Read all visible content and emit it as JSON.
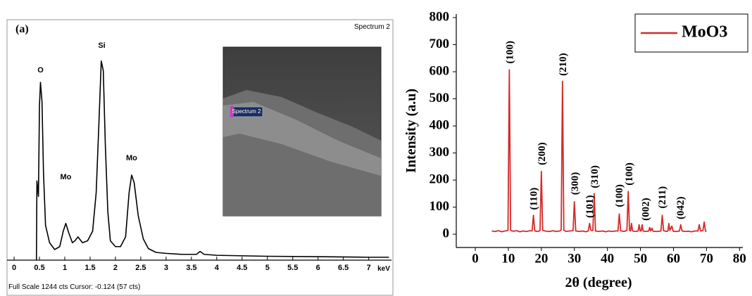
{
  "chart_data": [
    {
      "type": "line",
      "title": "(a)",
      "subtitle": "Spectrum 2",
      "footer": "Full Scale 1244 cts Cursor: -0.124 (57 cts)",
      "x_label": "keV",
      "inset_label": "Spectrum 2",
      "xlim": [
        -0.14,
        7.45
      ],
      "ylim": [
        0,
        1244
      ],
      "xticks": [
        0,
        0.5,
        1,
        1.5,
        2,
        2.5,
        3,
        3.5,
        4,
        4.5,
        5,
        5.5,
        6,
        6.5,
        7
      ],
      "x": [
        0.44,
        0.45,
        0.48,
        0.5,
        0.52,
        0.55,
        0.58,
        0.62,
        0.7,
        0.8,
        0.9,
        0.97,
        1.02,
        1.08,
        1.15,
        1.2,
        1.26,
        1.35,
        1.45,
        1.55,
        1.62,
        1.68,
        1.72,
        1.76,
        1.8,
        1.85,
        1.9,
        2.0,
        2.1,
        2.2,
        2.27,
        2.32,
        2.37,
        2.45,
        2.55,
        2.65,
        2.8,
        3.0,
        3.3,
        3.6,
        3.67,
        3.75,
        4.0,
        5.0,
        6.0,
        7.0,
        7.4
      ],
      "series": [
        {
          "color": "#000000",
          "values": [
            0,
            410,
            330,
            800,
            920,
            820,
            450,
            180,
            90,
            55,
            70,
            150,
            190,
            140,
            90,
            100,
            120,
            90,
            100,
            150,
            350,
            750,
            1030,
            980,
            600,
            250,
            100,
            70,
            70,
            120,
            350,
            440,
            400,
            230,
            110,
            60,
            40,
            35,
            30,
            30,
            45,
            30,
            25,
            20,
            18,
            15,
            15
          ]
        }
      ],
      "annotations": [
        {
          "text": "O",
          "x": 0.52,
          "y": 971
        },
        {
          "text": "Mo",
          "x": 1.02,
          "y": 418
        },
        {
          "text": "Si",
          "x": 1.73,
          "y": 1098
        },
        {
          "text": "Mo",
          "x": 2.32,
          "y": 516
        }
      ]
    },
    {
      "type": "line",
      "x_label": "2θ (degree)",
      "y_label": "Intensity (a.u)",
      "xlim": [
        -5.76,
        81
      ],
      "ylim": [
        -49,
        813
      ],
      "xticks": [
        0,
        10,
        20,
        30,
        40,
        50,
        60,
        70,
        80
      ],
      "yticks": [
        0,
        100,
        200,
        300,
        400,
        500,
        600,
        700,
        800
      ],
      "legend": "upper right",
      "x": [
        5,
        6,
        7,
        8,
        9,
        9.9,
        10.3,
        10.7,
        11.5,
        12.5,
        13.5,
        14.5,
        15.5,
        16.5,
        17.2,
        17.6,
        18.0,
        19.0,
        19.6,
        20.0,
        20.4,
        21.5,
        22.5,
        23.5,
        24.5,
        25.5,
        26.0,
        26.4,
        26.8,
        27.5,
        28.5,
        29.6,
        30.0,
        30.4,
        31.5,
        32.5,
        33.5,
        34.2,
        34.6,
        35.0,
        35.6,
        36.0,
        36.4,
        37.5,
        38.5,
        39.5,
        40.5,
        41.5,
        42.5,
        43.2,
        43.6,
        44.0,
        45.0,
        45.9,
        46.3,
        46.7,
        47.0,
        47.3,
        47.6,
        48.5,
        49.3,
        49.6,
        49.9,
        50.2,
        50.5,
        50.8,
        51.5,
        52.5,
        52.8,
        53.1,
        53.5,
        53.8,
        54.8,
        55.8,
        56.2,
        56.6,
        57.0,
        58.0,
        58.3,
        58.6,
        58.9,
        59.5,
        59.9,
        61.0,
        61.8,
        62.2,
        62.6,
        63.5,
        64.5,
        65.5,
        66.5,
        67.4,
        67.8,
        68.2,
        68.9,
        69.3,
        69.7,
        70.0
      ],
      "series": [
        {
          "name": "MoO3",
          "color": "#d42a2a",
          "values": [
            12,
            10,
            13,
            9,
            12,
            14,
            607,
            14,
            11,
            13,
            9,
            12,
            10,
            13,
            12,
            70,
            12,
            10,
            14,
            232,
            14,
            11,
            10,
            13,
            10,
            12,
            15,
            565,
            15,
            10,
            12,
            13,
            120,
            12,
            10,
            12,
            9,
            12,
            40,
            14,
            14,
            150,
            12,
            10,
            12,
            9,
            12,
            10,
            12,
            12,
            75,
            13,
            10,
            14,
            158,
            14,
            12,
            40,
            12,
            10,
            12,
            35,
            12,
            12,
            35,
            12,
            10,
            12,
            25,
            12,
            22,
            11,
            10,
            11,
            13,
            70,
            13,
            10,
            12,
            40,
            14,
            30,
            11,
            10,
            12,
            35,
            12,
            10,
            11,
            9,
            12,
            12,
            35,
            12,
            13,
            45,
            12,
            10
          ]
        }
      ],
      "annotations": [
        {
          "text": "(100)",
          "x": 10.3,
          "y": 630
        },
        {
          "text": "(110)",
          "x": 17.6,
          "y": 90
        },
        {
          "text": "(200)",
          "x": 20.0,
          "y": 255
        },
        {
          "text": "(210)",
          "x": 26.4,
          "y": 585
        },
        {
          "text": "(300)",
          "x": 30.0,
          "y": 145
        },
        {
          "text": "(101)",
          "x": 34.5,
          "y": 60
        },
        {
          "text": "(310)",
          "x": 36.0,
          "y": 170
        },
        {
          "text": "(100)",
          "x": 43.5,
          "y": 100
        },
        {
          "text": "(100)",
          "x": 46.5,
          "y": 180
        },
        {
          "text": "(002)",
          "x": 51.5,
          "y": 50
        },
        {
          "text": "(211)",
          "x": 56.5,
          "y": 95
        },
        {
          "text": "(042)",
          "x": 62.0,
          "y": 55
        }
      ]
    }
  ]
}
